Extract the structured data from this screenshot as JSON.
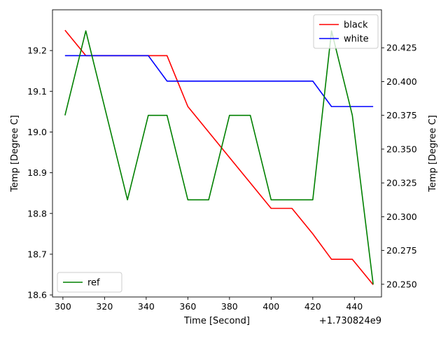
{
  "chart_data": {
    "type": "line",
    "xlabel": "Time [Second]",
    "ylabel_left": "Temp [Degree C]",
    "ylabel_right": "Temp [Degree C]",
    "x_offset_label": "+1.730824e9",
    "xlim": [
      295,
      453
    ],
    "x_ticks": [
      300,
      320,
      340,
      360,
      380,
      400,
      420,
      440
    ],
    "x_tick_labels": [
      "300",
      "320",
      "340",
      "360",
      "380",
      "400",
      "420",
      "440"
    ],
    "ylim_left": [
      18.595,
      19.3
    ],
    "y_ticks_left": [
      18.6,
      18.7,
      18.8,
      18.9,
      19.0,
      19.1,
      19.2
    ],
    "y_tick_labels_left": [
      "18.6",
      "18.7",
      "18.8",
      "18.9",
      "19.0",
      "19.1",
      "19.2"
    ],
    "ylim_right": [
      20.2406,
      20.4531
    ],
    "y_ticks_right": [
      20.25,
      20.275,
      20.3,
      20.325,
      20.35,
      20.375,
      20.4,
      20.425
    ],
    "y_tick_labels_right": [
      "20.250",
      "20.275",
      "20.300",
      "20.325",
      "20.350",
      "20.375",
      "20.400",
      "20.425"
    ],
    "series": [
      {
        "name": "black",
        "axis": "left",
        "color": "#ff0000",
        "x": [
          301,
          311,
          321,
          331,
          341,
          350,
          360,
          370,
          380,
          390,
          400,
          410,
          420,
          429,
          439,
          449
        ],
        "y": [
          19.25,
          19.1875,
          19.1875,
          19.1875,
          19.1875,
          19.1875,
          19.0625,
          19.0,
          18.9375,
          18.875,
          18.8125,
          18.8125,
          18.75,
          18.6875,
          18.6875,
          18.625
        ]
      },
      {
        "name": "white",
        "axis": "left",
        "color": "#0000ff",
        "x": [
          301,
          311,
          321,
          331,
          341,
          350,
          360,
          370,
          380,
          390,
          400,
          410,
          420,
          429,
          439,
          449
        ],
        "y": [
          19.1875,
          19.1875,
          19.1875,
          19.1875,
          19.1875,
          19.125,
          19.125,
          19.125,
          19.125,
          19.125,
          19.125,
          19.125,
          19.125,
          19.0625,
          19.0625,
          19.0625
        ]
      },
      {
        "name": "ref",
        "axis": "right",
        "color": "#008000",
        "x": [
          301,
          311,
          321,
          331,
          341,
          350,
          360,
          370,
          380,
          390,
          400,
          410,
          420,
          429,
          439,
          449
        ],
        "y": [
          20.375,
          20.4375,
          20.375,
          20.3125,
          20.375,
          20.375,
          20.3125,
          20.3125,
          20.375,
          20.375,
          20.3125,
          20.3125,
          20.3125,
          20.4375,
          20.375,
          20.25
        ]
      }
    ],
    "legends": [
      {
        "position": "upper right",
        "entries": [
          "black",
          "white"
        ]
      },
      {
        "position": "lower left",
        "entries": [
          "ref"
        ]
      }
    ]
  }
}
